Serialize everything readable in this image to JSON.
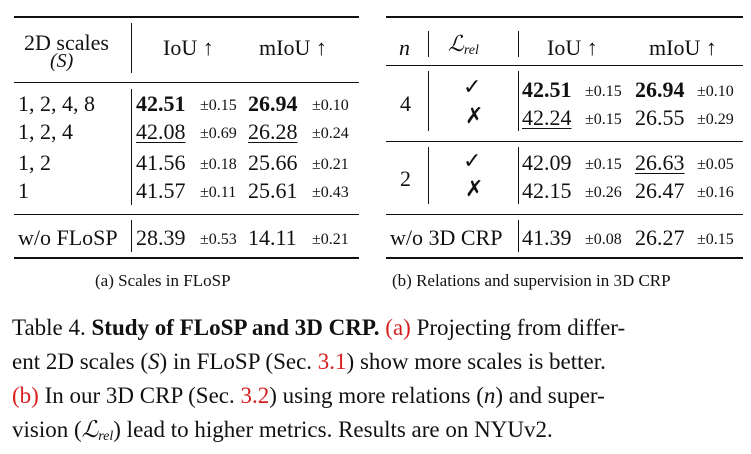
{
  "table_a": {
    "header": {
      "col1_line1": "2D scales",
      "col1_line2": "(S)",
      "col2": "IoU ↑",
      "col3": "mIoU ↑"
    },
    "rows": [
      {
        "scales": "1, 2, 4, 8",
        "iou": "42.51",
        "iou_sd": "±0.15",
        "miou": "26.94",
        "miou_sd": "±0.10"
      },
      {
        "scales": "1, 2, 4",
        "iou": "42.08",
        "iou_sd": "±0.69",
        "miou": "26.28",
        "miou_sd": "±0.24"
      },
      {
        "scales": "1, 2",
        "iou": "41.56",
        "iou_sd": "±0.18",
        "miou": "25.66",
        "miou_sd": "±0.21"
      },
      {
        "scales": "1",
        "iou": "41.57",
        "iou_sd": "±0.11",
        "miou": "25.61",
        "miou_sd": "±0.43"
      }
    ],
    "baseline": {
      "label": "w/o FLoSP",
      "iou": "28.39",
      "iou_sd": "±0.53",
      "miou": "14.11",
      "miou_sd": "±0.21"
    },
    "subcaption": "(a) Scales in FLoSP"
  },
  "table_b": {
    "header": {
      "col1": "n",
      "col2_main": "ℒ",
      "col2_sub": "rel",
      "col3": "IoU ↑",
      "col4": "mIoU ↑"
    },
    "groups": [
      {
        "n": "4",
        "rows": [
          {
            "mark": "✓",
            "iou": "42.51",
            "iou_sd": "±0.15",
            "miou": "26.94",
            "miou_sd": "±0.10"
          },
          {
            "mark": "✗",
            "iou": "42.24",
            "iou_sd": "±0.15",
            "miou": "26.55",
            "miou_sd": "±0.29"
          }
        ]
      },
      {
        "n": "2",
        "rows": [
          {
            "mark": "✓",
            "iou": "42.09",
            "iou_sd": "±0.15",
            "miou": "26.63",
            "miou_sd": "±0.05"
          },
          {
            "mark": "✗",
            "iou": "42.15",
            "iou_sd": "±0.26",
            "miou": "26.47",
            "miou_sd": "±0.16"
          }
        ]
      }
    ],
    "baseline": {
      "label": "w/o 3D CRP",
      "iou": "41.39",
      "iou_sd": "±0.08",
      "miou": "26.27",
      "miou_sd": "±0.15"
    },
    "subcaption": "(b) Relations and supervision in 3D CRP"
  },
  "caption": {
    "label": "Table 4.",
    "title": "Study of FLoSP and 3D CRP.",
    "a_marker": "(a)",
    "line1_rest": "Projecting from differ-",
    "line2": "ent 2D scales (",
    "line2_var": "S",
    "line2_mid": ") in FLoSP (Sec.",
    "ref1": "3.1",
    "line2_end": ") show more scales is better.",
    "b_marker": "(b)",
    "line3_a": "In our 3D CRP (Sec.",
    "ref2": "3.2",
    "line3_b": ") using more relations (",
    "line3_var": "n",
    "line3_c": ") and super-",
    "line4_a": "vision (",
    "line4_sym": "ℒ",
    "line4_sub": "rel",
    "line4_b": ") lead to higher metrics. Results are on NYUv2."
  }
}
